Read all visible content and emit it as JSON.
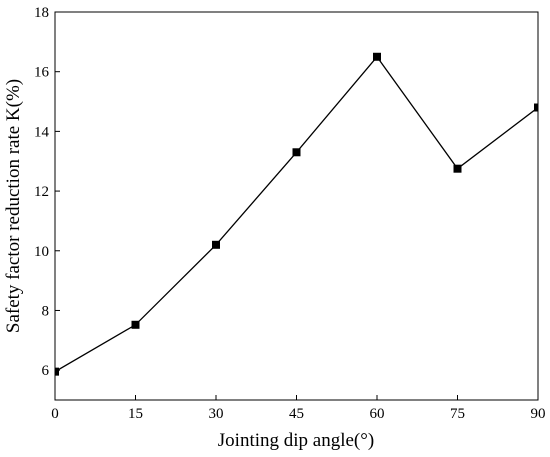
{
  "chart_data": {
    "type": "line",
    "title": "",
    "xlabel": "Jointing dip angle(°)",
    "ylabel": "Safety factor reduction rate K(%)",
    "xlim": [
      0,
      90
    ],
    "ylim": [
      5,
      18
    ],
    "xticks": [
      0,
      15,
      30,
      45,
      60,
      75,
      90
    ],
    "yticks": [
      6,
      8,
      10,
      12,
      14,
      16,
      18
    ],
    "grid": false,
    "legend": "none",
    "series": [
      {
        "marker": "square",
        "color": "#000000",
        "x": [
          0,
          15,
          30,
          45,
          60,
          75,
          90
        ],
        "y": [
          5.95,
          7.52,
          10.2,
          13.3,
          16.5,
          12.75,
          14.8
        ]
      }
    ]
  }
}
